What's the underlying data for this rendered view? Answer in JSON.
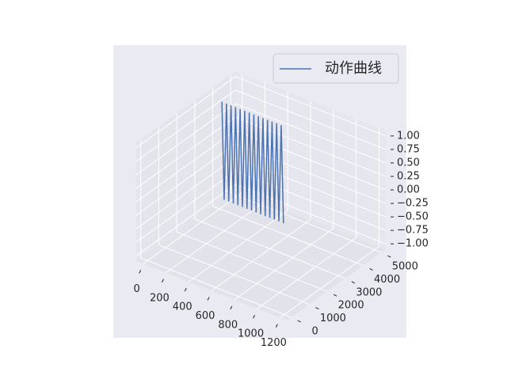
{
  "chart_data": {
    "type": "line3d",
    "xlim": [
      -60,
      1260
    ],
    "ylim": [
      -250,
      5250
    ],
    "zlim": [
      -1.1,
      1.1
    ],
    "xticks": [
      0,
      200,
      400,
      600,
      800,
      1000,
      1200
    ],
    "yticks": [
      0,
      1000,
      2000,
      3000,
      4000,
      5000
    ],
    "zticks": [
      {
        "value": -1,
        "label": "−1.00"
      },
      {
        "value": -0.75,
        "label": "−0.75"
      },
      {
        "value": -0.5,
        "label": "−0.50"
      },
      {
        "value": -0.25,
        "label": "−0.25"
      },
      {
        "value": 0,
        "label": "0.00"
      },
      {
        "value": 0.25,
        "label": "0.25"
      },
      {
        "value": 0.5,
        "label": "0.50"
      },
      {
        "value": 0.75,
        "label": "0.75"
      },
      {
        "value": 1,
        "label": "1.00"
      }
    ],
    "grid": true,
    "legend": "upper right",
    "series": [
      {
        "name": "动作曲线",
        "color": "#4c72b0",
        "x": [
          20,
          40,
          60,
          80,
          100,
          120,
          140,
          160,
          180,
          200,
          220,
          240,
          260,
          280,
          300,
          320,
          340,
          360,
          380,
          400,
          420,
          440,
          460,
          480,
          500,
          520,
          540,
          560
        ],
        "y": [
          4000,
          4000,
          4000,
          4000,
          4000,
          4000,
          4000,
          4000,
          4000,
          4000,
          4000,
          4000,
          4000,
          4000,
          4000,
          4000,
          4000,
          4000,
          4000,
          4000,
          4000,
          4000,
          4000,
          4000,
          4000,
          4000,
          4000,
          4000
        ],
        "values": [
          0.9,
          -0.9,
          0.9,
          -0.9,
          0.9,
          -0.9,
          0.9,
          -0.9,
          0.9,
          -0.9,
          0.9,
          -0.9,
          0.9,
          -0.9,
          0.9,
          -0.9,
          0.9,
          -0.9,
          0.9,
          -0.9,
          0.9,
          -0.9,
          0.9,
          -0.9,
          0.9,
          -0.9,
          0.9,
          -0.9
        ]
      }
    ]
  }
}
